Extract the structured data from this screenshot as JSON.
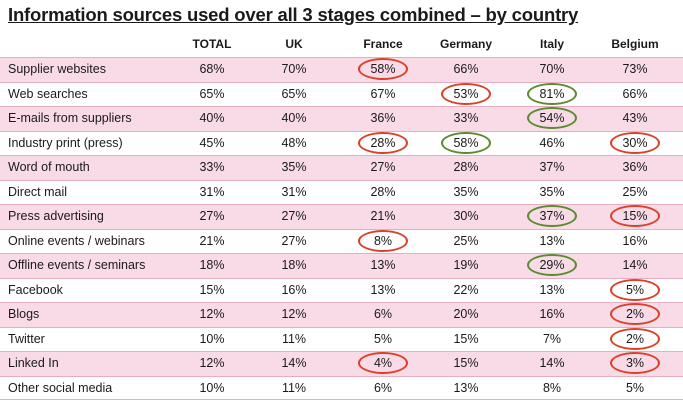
{
  "title": "Information sources used over all 3 stages combined – by country",
  "columns": [
    "TOTAL",
    "UK",
    "France",
    "Germany",
    "Italy",
    "Belgium"
  ],
  "colors": {
    "red_ring": "#d9412b",
    "green_ring": "#5c8a2e",
    "pink_row": "#f8dbe6"
  },
  "rows": [
    {
      "label": "Supplier websites",
      "values": [
        "68%",
        "70%",
        "58%",
        "66%",
        "70%",
        "73%"
      ],
      "marks": [
        "",
        "",
        "red",
        "",
        "",
        ""
      ]
    },
    {
      "label": "Web searches",
      "values": [
        "65%",
        "65%",
        "67%",
        "53%",
        "81%",
        "66%"
      ],
      "marks": [
        "",
        "",
        "",
        "red",
        "green",
        ""
      ]
    },
    {
      "label": "E-mails from suppliers",
      "values": [
        "40%",
        "40%",
        "36%",
        "33%",
        "54%",
        "43%"
      ],
      "marks": [
        "",
        "",
        "",
        "",
        "green",
        ""
      ]
    },
    {
      "label": "Industry print (press)",
      "values": [
        "45%",
        "48%",
        "28%",
        "58%",
        "46%",
        "30%"
      ],
      "marks": [
        "",
        "",
        "red",
        "green",
        "",
        "red"
      ]
    },
    {
      "label": "Word of mouth",
      "values": [
        "33%",
        "35%",
        "27%",
        "28%",
        "37%",
        "36%"
      ],
      "marks": [
        "",
        "",
        "",
        "",
        "",
        ""
      ]
    },
    {
      "label": "Direct mail",
      "values": [
        "31%",
        "31%",
        "28%",
        "35%",
        "35%",
        "25%"
      ],
      "marks": [
        "",
        "",
        "",
        "",
        "",
        ""
      ]
    },
    {
      "label": "Press advertising",
      "values": [
        "27%",
        "27%",
        "21%",
        "30%",
        "37%",
        "15%"
      ],
      "marks": [
        "",
        "",
        "",
        "",
        "green",
        "red"
      ]
    },
    {
      "label": "Online events / webinars",
      "values": [
        "21%",
        "27%",
        "8%",
        "25%",
        "13%",
        "16%"
      ],
      "marks": [
        "",
        "",
        "red",
        "",
        "",
        ""
      ]
    },
    {
      "label": "Offline events / seminars",
      "values": [
        "18%",
        "18%",
        "13%",
        "19%",
        "29%",
        "14%"
      ],
      "marks": [
        "",
        "",
        "",
        "",
        "green",
        ""
      ]
    },
    {
      "label": "Facebook",
      "values": [
        "15%",
        "16%",
        "13%",
        "22%",
        "13%",
        "5%"
      ],
      "marks": [
        "",
        "",
        "",
        "",
        "",
        "red"
      ]
    },
    {
      "label": "Blogs",
      "values": [
        "12%",
        "12%",
        "6%",
        "20%",
        "16%",
        "2%"
      ],
      "marks": [
        "",
        "",
        "",
        "",
        "",
        "red"
      ]
    },
    {
      "label": "Twitter",
      "values": [
        "10%",
        "11%",
        "5%",
        "15%",
        "7%",
        "2%"
      ],
      "marks": [
        "",
        "",
        "",
        "",
        "",
        "red"
      ]
    },
    {
      "label": "Linked In",
      "values": [
        "12%",
        "14%",
        "4%",
        "15%",
        "14%",
        "3%"
      ],
      "marks": [
        "",
        "",
        "red",
        "",
        "",
        "red"
      ]
    },
    {
      "label": "Other social media",
      "values": [
        "10%",
        "11%",
        "6%",
        "13%",
        "8%",
        "5%"
      ],
      "marks": [
        "",
        "",
        "",
        "",
        "",
        ""
      ]
    }
  ]
}
